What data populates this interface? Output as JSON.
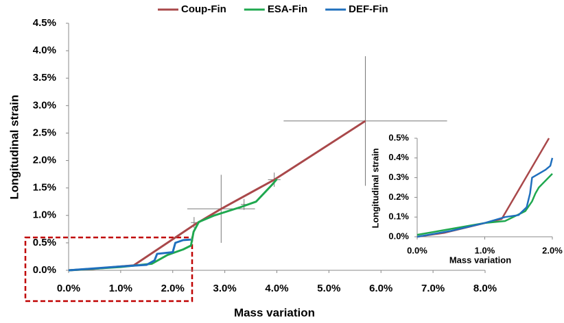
{
  "chart_data": [
    {
      "type": "line",
      "legend": "top",
      "x_label": "Mass variation",
      "y_label": "Longitudinal strain",
      "xlim": [
        0,
        8
      ],
      "ylim": [
        0,
        4.5
      ],
      "grid": false,
      "xticks": [
        {
          "value": 0,
          "label": "0.0%"
        },
        {
          "value": 1,
          "label": "1.0%"
        },
        {
          "value": 2,
          "label": "2.0%"
        },
        {
          "value": 3,
          "label": "3.0%"
        },
        {
          "value": 4,
          "label": "4.0%"
        },
        {
          "value": 5,
          "label": "5.0%"
        },
        {
          "value": 6,
          "label": "6.0%"
        },
        {
          "value": 7,
          "label": "7.0%"
        },
        {
          "value": 8,
          "label": "8.0%"
        }
      ],
      "yticks": [
        {
          "value": 0,
          "label": "0.0%"
        },
        {
          "value": 0.5,
          "label": "0.5%"
        },
        {
          "value": 1,
          "label": "1.0%"
        },
        {
          "value": 1.5,
          "label": "1.5%"
        },
        {
          "value": 2,
          "label": "2.0%"
        },
        {
          "value": 2.5,
          "label": "2.5%"
        },
        {
          "value": 3,
          "label": "3.0%"
        },
        {
          "value": 3.5,
          "label": "3.5%"
        },
        {
          "value": 4,
          "label": "4.0%"
        },
        {
          "value": 4.5,
          "label": "4.5%"
        }
      ],
      "series": [
        {
          "name": "Coup-Fin",
          "color": "#a9484a",
          "x": [
            0,
            0.4,
            1.25,
            2.4,
            2.93,
            3.95,
            5.7
          ],
          "values": [
            0,
            0.02,
            0.09,
            0.82,
            1.12,
            1.65,
            2.72
          ]
        },
        {
          "name": "ESA-Fin",
          "color": "#1fa84f",
          "x": [
            0,
            1,
            1.6,
            1.9,
            2.2,
            2.35,
            2.4,
            2.5,
            2.8,
            3.3,
            3.6,
            3.9,
            4.0
          ],
          "values": [
            0,
            0.06,
            0.12,
            0.28,
            0.38,
            0.45,
            0.7,
            0.88,
            1.0,
            1.15,
            1.25,
            1.55,
            1.66
          ]
        },
        {
          "name": "DEF-Fin",
          "color": "#1f6fbd",
          "x": [
            0,
            1,
            1.5,
            1.65,
            1.7,
            2.0,
            2.05,
            2.2,
            2.35
          ],
          "values": [
            0,
            0.07,
            0.1,
            0.18,
            0.3,
            0.33,
            0.5,
            0.55,
            0.56
          ]
        }
      ],
      "error_bars": [
        {
          "x": 2.41,
          "y": 0.87,
          "xerr": 0.06,
          "yerr": 0.1
        },
        {
          "x": 2.93,
          "y": 1.12,
          "xerr": 0.65,
          "yerr": 0.62
        },
        {
          "x": 3.37,
          "y": 1.2,
          "xerr": 0.06,
          "yerr": 0.1
        },
        {
          "x": 3.95,
          "y": 1.65,
          "xerr": 0.12,
          "yerr": 0.13
        },
        {
          "x": 5.7,
          "y": 2.72,
          "xerr": 1.57,
          "yerr": 1.18
        }
      ]
    },
    {
      "type": "line",
      "x_label": "Mass variation",
      "y_label": "Longitudinal strain",
      "xlim": [
        0,
        2
      ],
      "ylim": [
        0,
        0.5
      ],
      "grid": false,
      "xticks": [
        {
          "value": 0,
          "label": "0.0%"
        },
        {
          "value": 1,
          "label": "1.0%"
        },
        {
          "value": 2,
          "label": "2.0%"
        }
      ],
      "yticks": [
        {
          "value": 0,
          "label": "0.0%"
        },
        {
          "value": 0.1,
          "label": "0.1%"
        },
        {
          "value": 0.2,
          "label": "0.2%"
        },
        {
          "value": 0.3,
          "label": "0.3%"
        },
        {
          "value": 0.4,
          "label": "0.4%"
        },
        {
          "value": 0.5,
          "label": "0.5%"
        }
      ],
      "series": [
        {
          "name": "Coup-Fin",
          "color": "#a9484a",
          "x": [
            0,
            0.4,
            1.25,
            1.95
          ],
          "values": [
            0,
            0.02,
            0.09,
            0.5
          ]
        },
        {
          "name": "ESA-Fin",
          "color": "#1fa84f",
          "x": [
            0,
            0.5,
            1.0,
            1.3,
            1.6,
            1.7,
            1.75,
            1.8,
            2.0
          ],
          "values": [
            0.01,
            0.04,
            0.07,
            0.08,
            0.13,
            0.18,
            0.22,
            0.25,
            0.32
          ]
        },
        {
          "name": "DEF-Fin",
          "color": "#1f6fbd",
          "x": [
            0,
            0.5,
            1.0,
            1.3,
            1.5,
            1.62,
            1.67,
            1.7,
            1.9,
            1.97,
            2.0
          ],
          "values": [
            0,
            0.03,
            0.07,
            0.1,
            0.11,
            0.15,
            0.22,
            0.3,
            0.34,
            0.36,
            0.4
          ]
        }
      ]
    }
  ]
}
